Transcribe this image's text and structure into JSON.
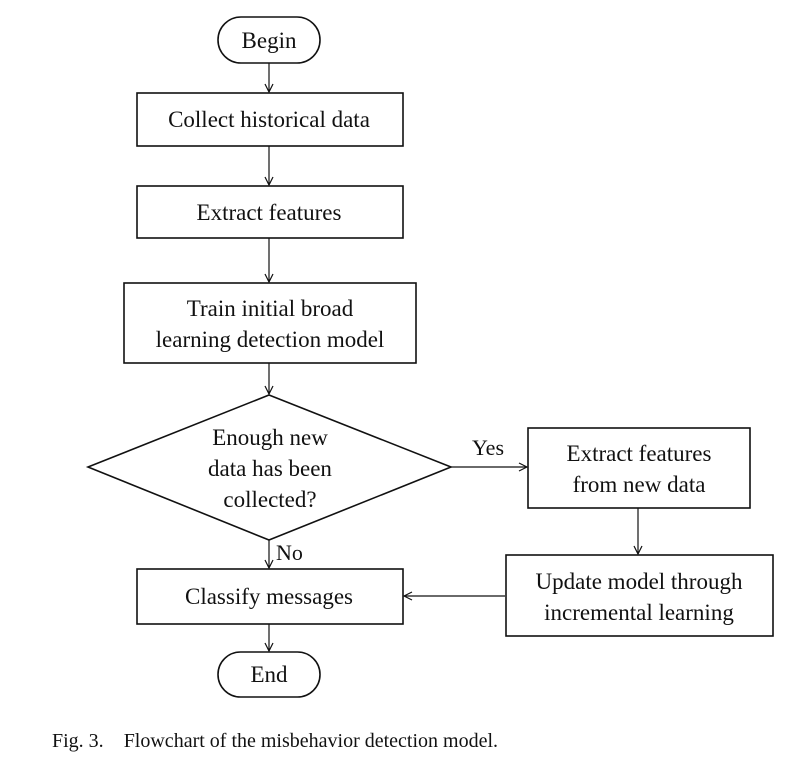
{
  "flowchart": {
    "begin": "Begin",
    "collect": "Collect historical data",
    "extract": "Extract features",
    "train_line1": "Train  initial broad",
    "train_line2": "learning detection model",
    "decision_line1": "Enough new",
    "decision_line2": "data has been",
    "decision_line3": "collected?",
    "yes_label": "Yes",
    "no_label": "No",
    "extract_new_line1": "Extract features",
    "extract_new_line2": "from new data",
    "update_line1": "Update model through",
    "update_line2": "incremental learning",
    "classify": "Classify messages",
    "end": "End"
  },
  "caption": {
    "label": "Fig. 3.",
    "text": "Flowchart of the misbehavior detection model."
  }
}
